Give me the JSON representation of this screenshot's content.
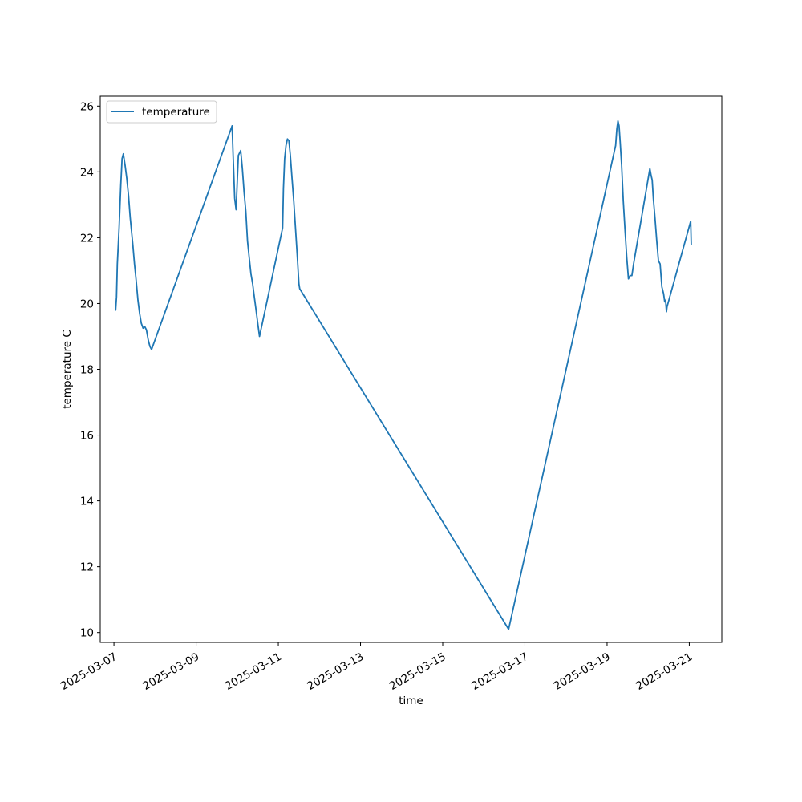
{
  "chart_data": {
    "type": "line",
    "title": "",
    "xlabel": "time",
    "ylabel": "temperature C",
    "x_type": "date",
    "xlim": [
      "2025-03-06T16:00",
      "2025-03-21T19:00"
    ],
    "ylim": [
      9.7,
      26.3
    ],
    "x_ticks": [
      "2025-03-07",
      "2025-03-09",
      "2025-03-11",
      "2025-03-13",
      "2025-03-15",
      "2025-03-17",
      "2025-03-19",
      "2025-03-21"
    ],
    "y_ticks": [
      10,
      12,
      14,
      16,
      18,
      20,
      22,
      24,
      26
    ],
    "y_tick_labels": [
      "10",
      "12",
      "14",
      "16",
      "18",
      "20",
      "22",
      "24",
      "26"
    ],
    "grid": false,
    "legend": {
      "position": "top-left",
      "entries": [
        "temperature"
      ]
    },
    "series": [
      {
        "name": "temperature",
        "color": "#1f77b4",
        "points": [
          [
            "2025-03-07T01:00",
            19.8
          ],
          [
            "2025-03-07T01:30",
            20.2
          ],
          [
            "2025-03-07T02:00",
            21.2
          ],
          [
            "2025-03-07T03:00",
            22.3
          ],
          [
            "2025-03-07T04:00",
            23.6
          ],
          [
            "2025-03-07T04:45",
            24.4
          ],
          [
            "2025-03-07T05:30",
            24.55
          ],
          [
            "2025-03-07T06:30",
            24.2
          ],
          [
            "2025-03-07T07:30",
            23.8
          ],
          [
            "2025-03-07T08:30",
            23.3
          ],
          [
            "2025-03-07T09:30",
            22.6
          ],
          [
            "2025-03-07T11:00",
            21.8
          ],
          [
            "2025-03-07T12:00",
            21.2
          ],
          [
            "2025-03-07T13:00",
            20.7
          ],
          [
            "2025-03-07T14:00",
            20.1
          ],
          [
            "2025-03-07T15:00",
            19.7
          ],
          [
            "2025-03-07T16:00",
            19.4
          ],
          [
            "2025-03-07T17:00",
            19.25
          ],
          [
            "2025-03-07T18:00",
            19.3
          ],
          [
            "2025-03-07T19:00",
            19.2
          ],
          [
            "2025-03-07T20:00",
            18.9
          ],
          [
            "2025-03-07T21:00",
            18.7
          ],
          [
            "2025-03-07T22:00",
            18.6
          ],
          [
            "2025-03-07T23:00",
            18.75
          ],
          [
            "2025-03-09T21:00",
            25.4
          ],
          [
            "2025-03-09T21:40",
            24.4
          ],
          [
            "2025-03-09T22:30",
            23.2
          ],
          [
            "2025-03-09T23:20",
            22.85
          ],
          [
            "2025-03-10T00:00",
            23.7
          ],
          [
            "2025-03-10T00:40",
            24.5
          ],
          [
            "2025-03-10T02:00",
            24.65
          ],
          [
            "2025-03-10T03:00",
            24.1
          ],
          [
            "2025-03-10T04:00",
            23.4
          ],
          [
            "2025-03-10T05:00",
            22.8
          ],
          [
            "2025-03-10T06:00",
            21.9
          ],
          [
            "2025-03-10T07:00",
            21.4
          ],
          [
            "2025-03-10T08:00",
            20.9
          ],
          [
            "2025-03-10T09:00",
            20.6
          ],
          [
            "2025-03-10T10:00",
            20.2
          ],
          [
            "2025-03-10T11:00",
            19.8
          ],
          [
            "2025-03-10T12:00",
            19.4
          ],
          [
            "2025-03-10T13:00",
            19.0
          ],
          [
            "2025-03-11T02:30",
            22.3
          ],
          [
            "2025-03-11T03:00",
            23.5
          ],
          [
            "2025-03-11T03:40",
            24.4
          ],
          [
            "2025-03-11T04:30",
            24.8
          ],
          [
            "2025-03-11T05:20",
            25.0
          ],
          [
            "2025-03-11T06:10",
            24.95
          ],
          [
            "2025-03-11T07:00",
            24.5
          ],
          [
            "2025-03-11T08:00",
            23.8
          ],
          [
            "2025-03-11T09:00",
            23.1
          ],
          [
            "2025-03-11T10:00",
            22.3
          ],
          [
            "2025-03-11T11:00",
            21.5
          ],
          [
            "2025-03-11T12:00",
            20.6
          ],
          [
            "2025-03-11T12:30",
            20.45
          ],
          [
            "2025-03-16T14:30",
            10.1
          ],
          [
            "2025-03-19T05:00",
            24.8
          ],
          [
            "2025-03-19T05:40",
            25.3
          ],
          [
            "2025-03-19T06:20",
            25.55
          ],
          [
            "2025-03-19T07:00",
            25.4
          ],
          [
            "2025-03-19T07:40",
            24.9
          ],
          [
            "2025-03-19T08:30",
            24.2
          ],
          [
            "2025-03-19T09:30",
            23.1
          ],
          [
            "2025-03-19T10:30",
            22.2
          ],
          [
            "2025-03-19T11:30",
            21.4
          ],
          [
            "2025-03-19T12:30",
            20.75
          ],
          [
            "2025-03-19T13:30",
            20.85
          ],
          [
            "2025-03-19T14:30",
            20.85
          ],
          [
            "2025-03-19T15:30",
            21.2
          ],
          [
            "2025-03-20T01:00",
            24.1
          ],
          [
            "2025-03-20T01:40",
            23.9
          ],
          [
            "2025-03-20T02:20",
            23.75
          ],
          [
            "2025-03-20T03:00",
            23.2
          ],
          [
            "2025-03-20T04:00",
            22.6
          ],
          [
            "2025-03-20T05:00",
            21.9
          ],
          [
            "2025-03-20T06:00",
            21.3
          ],
          [
            "2025-03-20T07:00",
            21.2
          ],
          [
            "2025-03-20T08:00",
            20.5
          ],
          [
            "2025-03-20T09:00",
            20.3
          ],
          [
            "2025-03-20T09:40",
            20.05
          ],
          [
            "2025-03-20T10:10",
            20.1
          ],
          [
            "2025-03-20T10:40",
            19.75
          ],
          [
            "2025-03-20T11:00",
            19.9
          ],
          [
            "2025-03-21T00:50",
            22.5
          ],
          [
            "2025-03-21T01:10",
            21.8
          ]
        ]
      }
    ]
  }
}
